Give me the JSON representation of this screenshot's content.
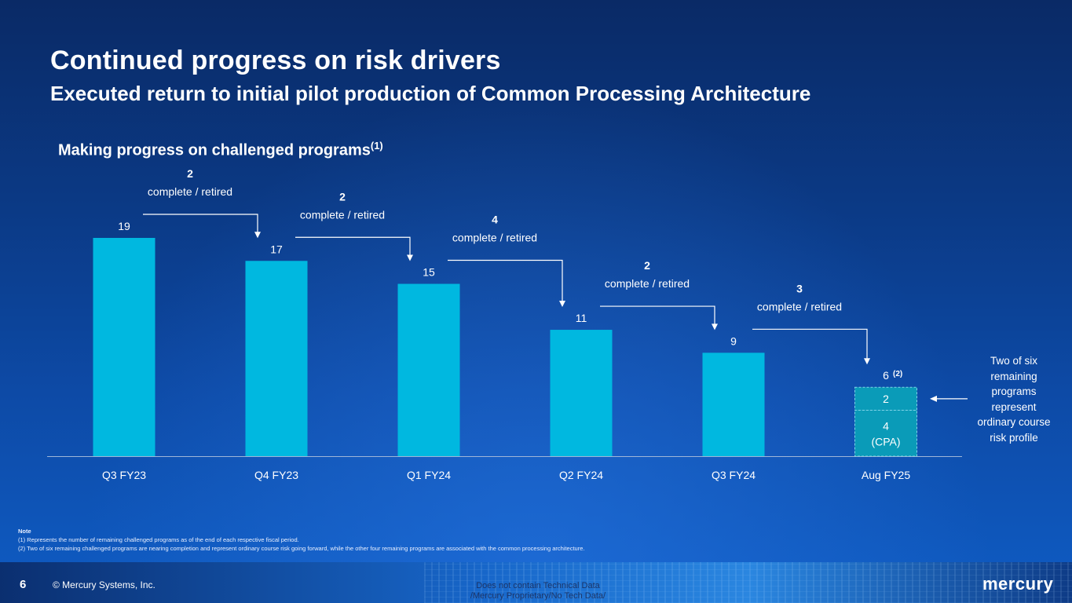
{
  "page": {
    "title": "Continued progress on risk drivers",
    "subtitle": "Executed return to initial pilot production of Common Processing Architecture",
    "section_title": "Making progress on challenged programs",
    "section_sup": "(1)"
  },
  "side_note": {
    "lines": [
      "Two of six",
      "remaining",
      "programs",
      "represent",
      "ordinary course",
      "risk profile"
    ]
  },
  "notes": {
    "heading": "Note",
    "items": [
      "(1)   Represents the number of remaining challenged programs as of the end of each respective fiscal period.",
      "(2)   Two of six remaining challenged programs are nearing completion and represent ordinary course risk going forward, while the other four remaining programs are associated with the common processing architecture."
    ]
  },
  "footer": {
    "page_number": "6",
    "copyright": "© Mercury Systems, Inc.",
    "disclaimer_line1": "Does not contain Technical Data",
    "disclaimer_line2": "/Mercury Proprietary/No Tech Data/",
    "logo_text": "mercury"
  },
  "colors": {
    "bar": "#00b8e0",
    "bar_stack": "#0a9bb8",
    "bar_stack_border": "#7fd4e8",
    "connector": "#ffffff",
    "axis": "#9fb6d8"
  },
  "chart_data": {
    "type": "bar",
    "categories": [
      "Q3 FY23",
      "Q4 FY23",
      "Q1 FY24",
      "Q2 FY24",
      "Q3 FY24",
      "Aug FY25"
    ],
    "values": [
      19,
      17,
      15,
      11,
      9,
      6
    ],
    "value_labels": [
      "19",
      "17",
      "15",
      "11",
      "9",
      "6"
    ],
    "last_label_sup": "(2)",
    "last_bar_stack": [
      {
        "value": 4,
        "label": "4",
        "sublabel": "(CPA)"
      },
      {
        "value": 2,
        "label": "2",
        "sublabel": ""
      }
    ],
    "transitions": [
      {
        "count": "2",
        "text": "complete / retired"
      },
      {
        "count": "2",
        "text": "complete / retired"
      },
      {
        "count": "4",
        "text": "complete / retired"
      },
      {
        "count": "2",
        "text": "complete / retired"
      },
      {
        "count": "3",
        "text": "complete / retired"
      }
    ],
    "ylim": [
      0,
      19
    ],
    "xlabel": "",
    "ylabel": "",
    "legend": "none",
    "grid": false
  }
}
